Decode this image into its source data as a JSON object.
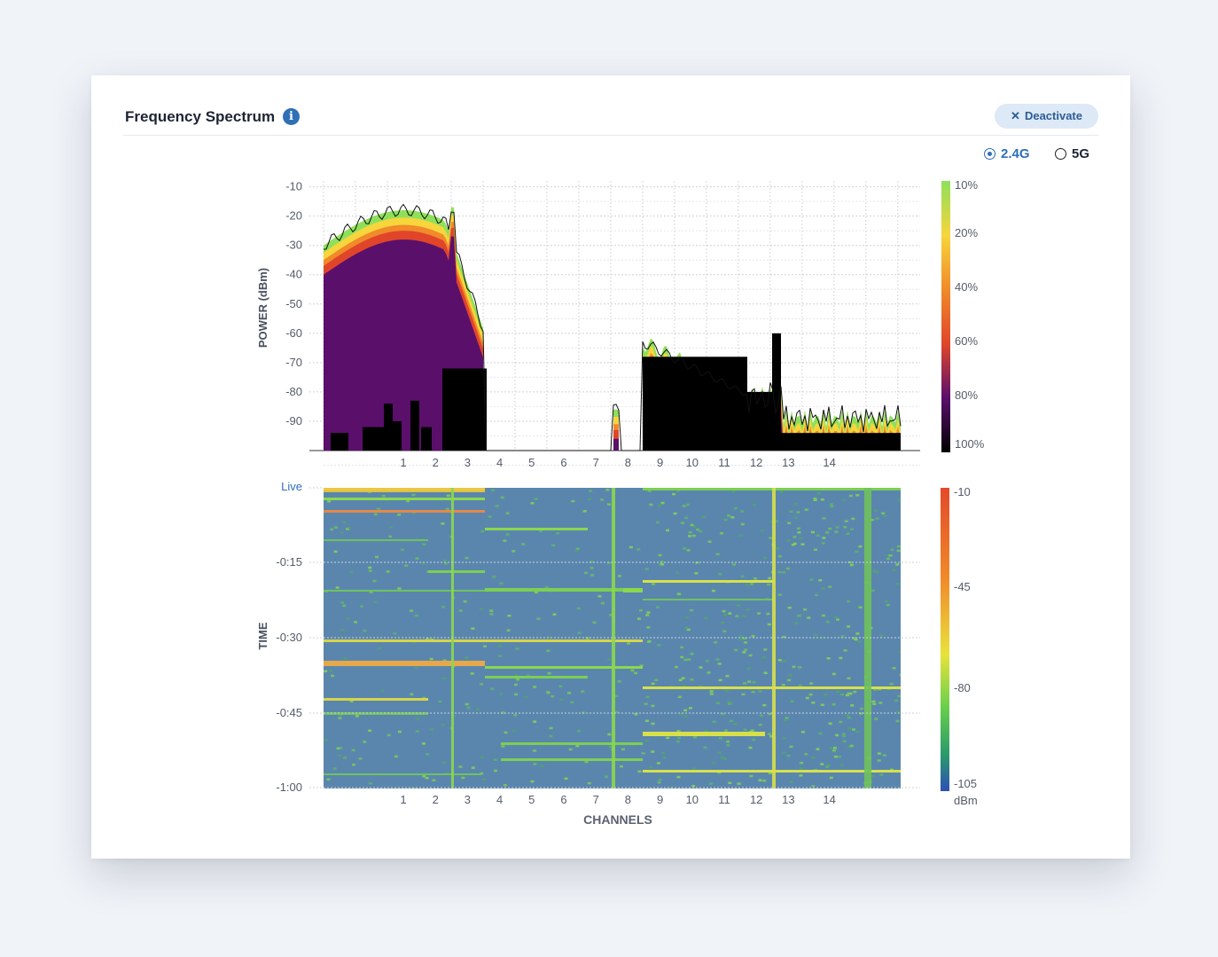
{
  "header": {
    "title": "Frequency Spectrum",
    "info_icon": "info-icon",
    "deactivate_label": "Deactivate",
    "deactivate_icon": "close-icon"
  },
  "band_selector": {
    "options": [
      {
        "label": "2.4G",
        "selected": true
      },
      {
        "label": "5G",
        "selected": false
      }
    ]
  },
  "chart_data": [
    {
      "type": "area",
      "name": "spectrum",
      "ylabel": "POWER (dBm)",
      "yticks": [
        -10,
        -20,
        -30,
        -40,
        -50,
        -60,
        -70,
        -80,
        -90
      ],
      "ylim": [
        -100,
        -8
      ],
      "xticks": [
        "1",
        "2",
        "3",
        "4",
        "5",
        "6",
        "7",
        "8",
        "9",
        "10",
        "11",
        "12",
        "13",
        "14"
      ],
      "grid": true,
      "legend": {
        "placement": "right",
        "labels": [
          "10%",
          "20%",
          "40%",
          "60%",
          "80%",
          "100%"
        ],
        "colors": [
          "#8ee05a",
          "#f7d53c",
          "#f08a2a",
          "#e0452a",
          "#5a0f6b",
          "#000000"
        ]
      }
    },
    {
      "type": "heatmap",
      "name": "waterfall",
      "ylabel": "TIME",
      "live_label": "Live",
      "yticks": [
        "-0:15",
        "-0:30",
        "-0:45",
        "-1:00"
      ],
      "xlabel": "CHANNELS",
      "xticks": [
        "1",
        "2",
        "3",
        "4",
        "5",
        "6",
        "7",
        "8",
        "9",
        "10",
        "11",
        "12",
        "13",
        "14"
      ],
      "colorbar": {
        "labels": [
          "-10",
          "-45",
          "-80",
          "-105"
        ],
        "unit": "dBm",
        "colors": [
          "#e34a2a",
          "#f08a2a",
          "#e8e33a",
          "#6ad04c",
          "#2a9a6a",
          "#2e4fb8"
        ]
      },
      "background_color": "#5a86ae"
    }
  ]
}
